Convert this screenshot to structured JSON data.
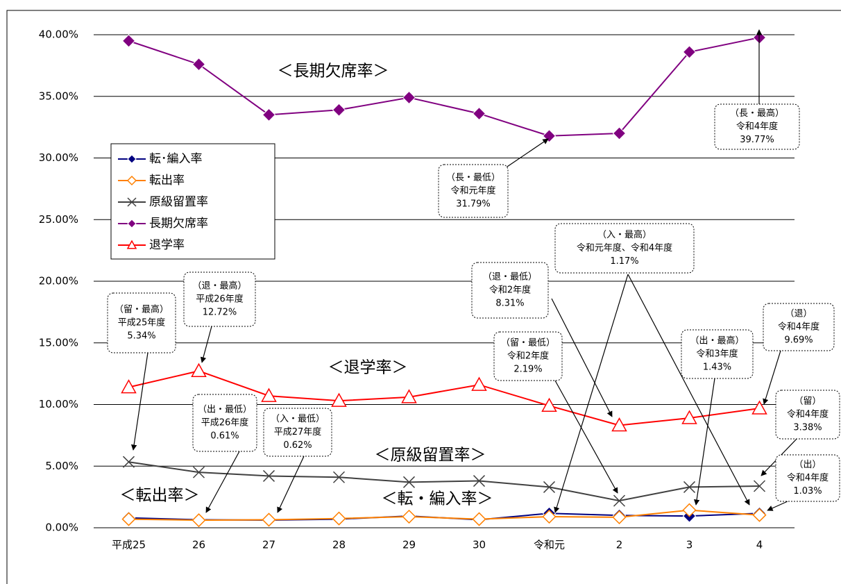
{
  "chart_data": {
    "type": "line",
    "categories": [
      "平成25",
      "26",
      "27",
      "28",
      "29",
      "30",
      "令和元",
      "2",
      "3",
      "4"
    ],
    "ylim": [
      0,
      40
    ],
    "yticks": [
      {
        "value": 0,
        "label": "0.00%"
      },
      {
        "value": 5,
        "label": "5.00%"
      },
      {
        "value": 10,
        "label": "10.00%"
      },
      {
        "value": 15,
        "label": "15.00%"
      },
      {
        "value": 20,
        "label": "20.00%"
      },
      {
        "value": 25,
        "label": "25.00%"
      },
      {
        "value": 30,
        "label": "30.00%"
      },
      {
        "value": 35,
        "label": "35.00%"
      },
      {
        "value": 40,
        "label": "40.00%"
      }
    ],
    "grid": true,
    "legend": "upper-left",
    "series": [
      {
        "name": "転･編入率",
        "color": "#000080",
        "marker": "diamond",
        "values": [
          0.8,
          0.65,
          0.62,
          0.7,
          0.95,
          0.65,
          1.17,
          1.0,
          0.95,
          1.17
        ]
      },
      {
        "name": "転出率",
        "color": "#ff8000",
        "marker": "open-diamond",
        "values": [
          0.7,
          0.61,
          0.65,
          0.75,
          0.9,
          0.7,
          0.9,
          0.85,
          1.43,
          1.03
        ]
      },
      {
        "name": "原級留置率",
        "color": "#404040",
        "marker": "x",
        "values": [
          5.34,
          4.5,
          4.2,
          4.1,
          3.7,
          3.8,
          3.3,
          2.19,
          3.3,
          3.38
        ]
      },
      {
        "name": "長期欠席率",
        "color": "#800080",
        "marker": "diamond",
        "values": [
          39.5,
          37.6,
          33.5,
          33.9,
          34.9,
          33.6,
          31.79,
          32.0,
          38.6,
          39.77
        ]
      },
      {
        "name": "退学率",
        "color": "#ff0000",
        "marker": "open-triangle",
        "values": [
          11.4,
          12.72,
          10.7,
          10.3,
          10.6,
          11.6,
          9.9,
          8.31,
          8.9,
          9.69
        ]
      }
    ],
    "series_labels": [
      "＜長期欠席率＞",
      "＜退学率＞",
      "＜原級留置率＞",
      "＜転出率＞",
      "＜転・編入率＞"
    ],
    "annotations": [
      {
        "lines": [
          "（長・最高）",
          "令和4年度",
          "39.77%"
        ]
      },
      {
        "lines": [
          "（長・最低）",
          "令和元年度",
          "31.79%"
        ]
      },
      {
        "lines": [
          "（入・最高）",
          "令和元年度、令和4年度",
          "1.17%"
        ]
      },
      {
        "lines": [
          "（退・最低）",
          "令和2年度",
          "8.31%"
        ]
      },
      {
        "lines": [
          "（留・最高）",
          "平成25年度",
          "5.34%"
        ]
      },
      {
        "lines": [
          "（退・最高）",
          "平成26年度",
          "12.72%"
        ]
      },
      {
        "lines": [
          "（留・最低）",
          "令和2年度",
          "2.19%"
        ]
      },
      {
        "lines": [
          "（出・最高）",
          "令和3年度",
          "1.43%"
        ]
      },
      {
        "lines": [
          "（退）",
          "令和4年度",
          "9.69%"
        ]
      },
      {
        "lines": [
          "（出・最低）",
          "平成26年度",
          "0.61%"
        ]
      },
      {
        "lines": [
          "（入・最低）",
          "平成27年度",
          "0.62%"
        ]
      },
      {
        "lines": [
          "（留）",
          "令和4年度",
          "3.38%"
        ]
      },
      {
        "lines": [
          "（出）",
          "令和4年度",
          "1.03%"
        ]
      }
    ]
  }
}
